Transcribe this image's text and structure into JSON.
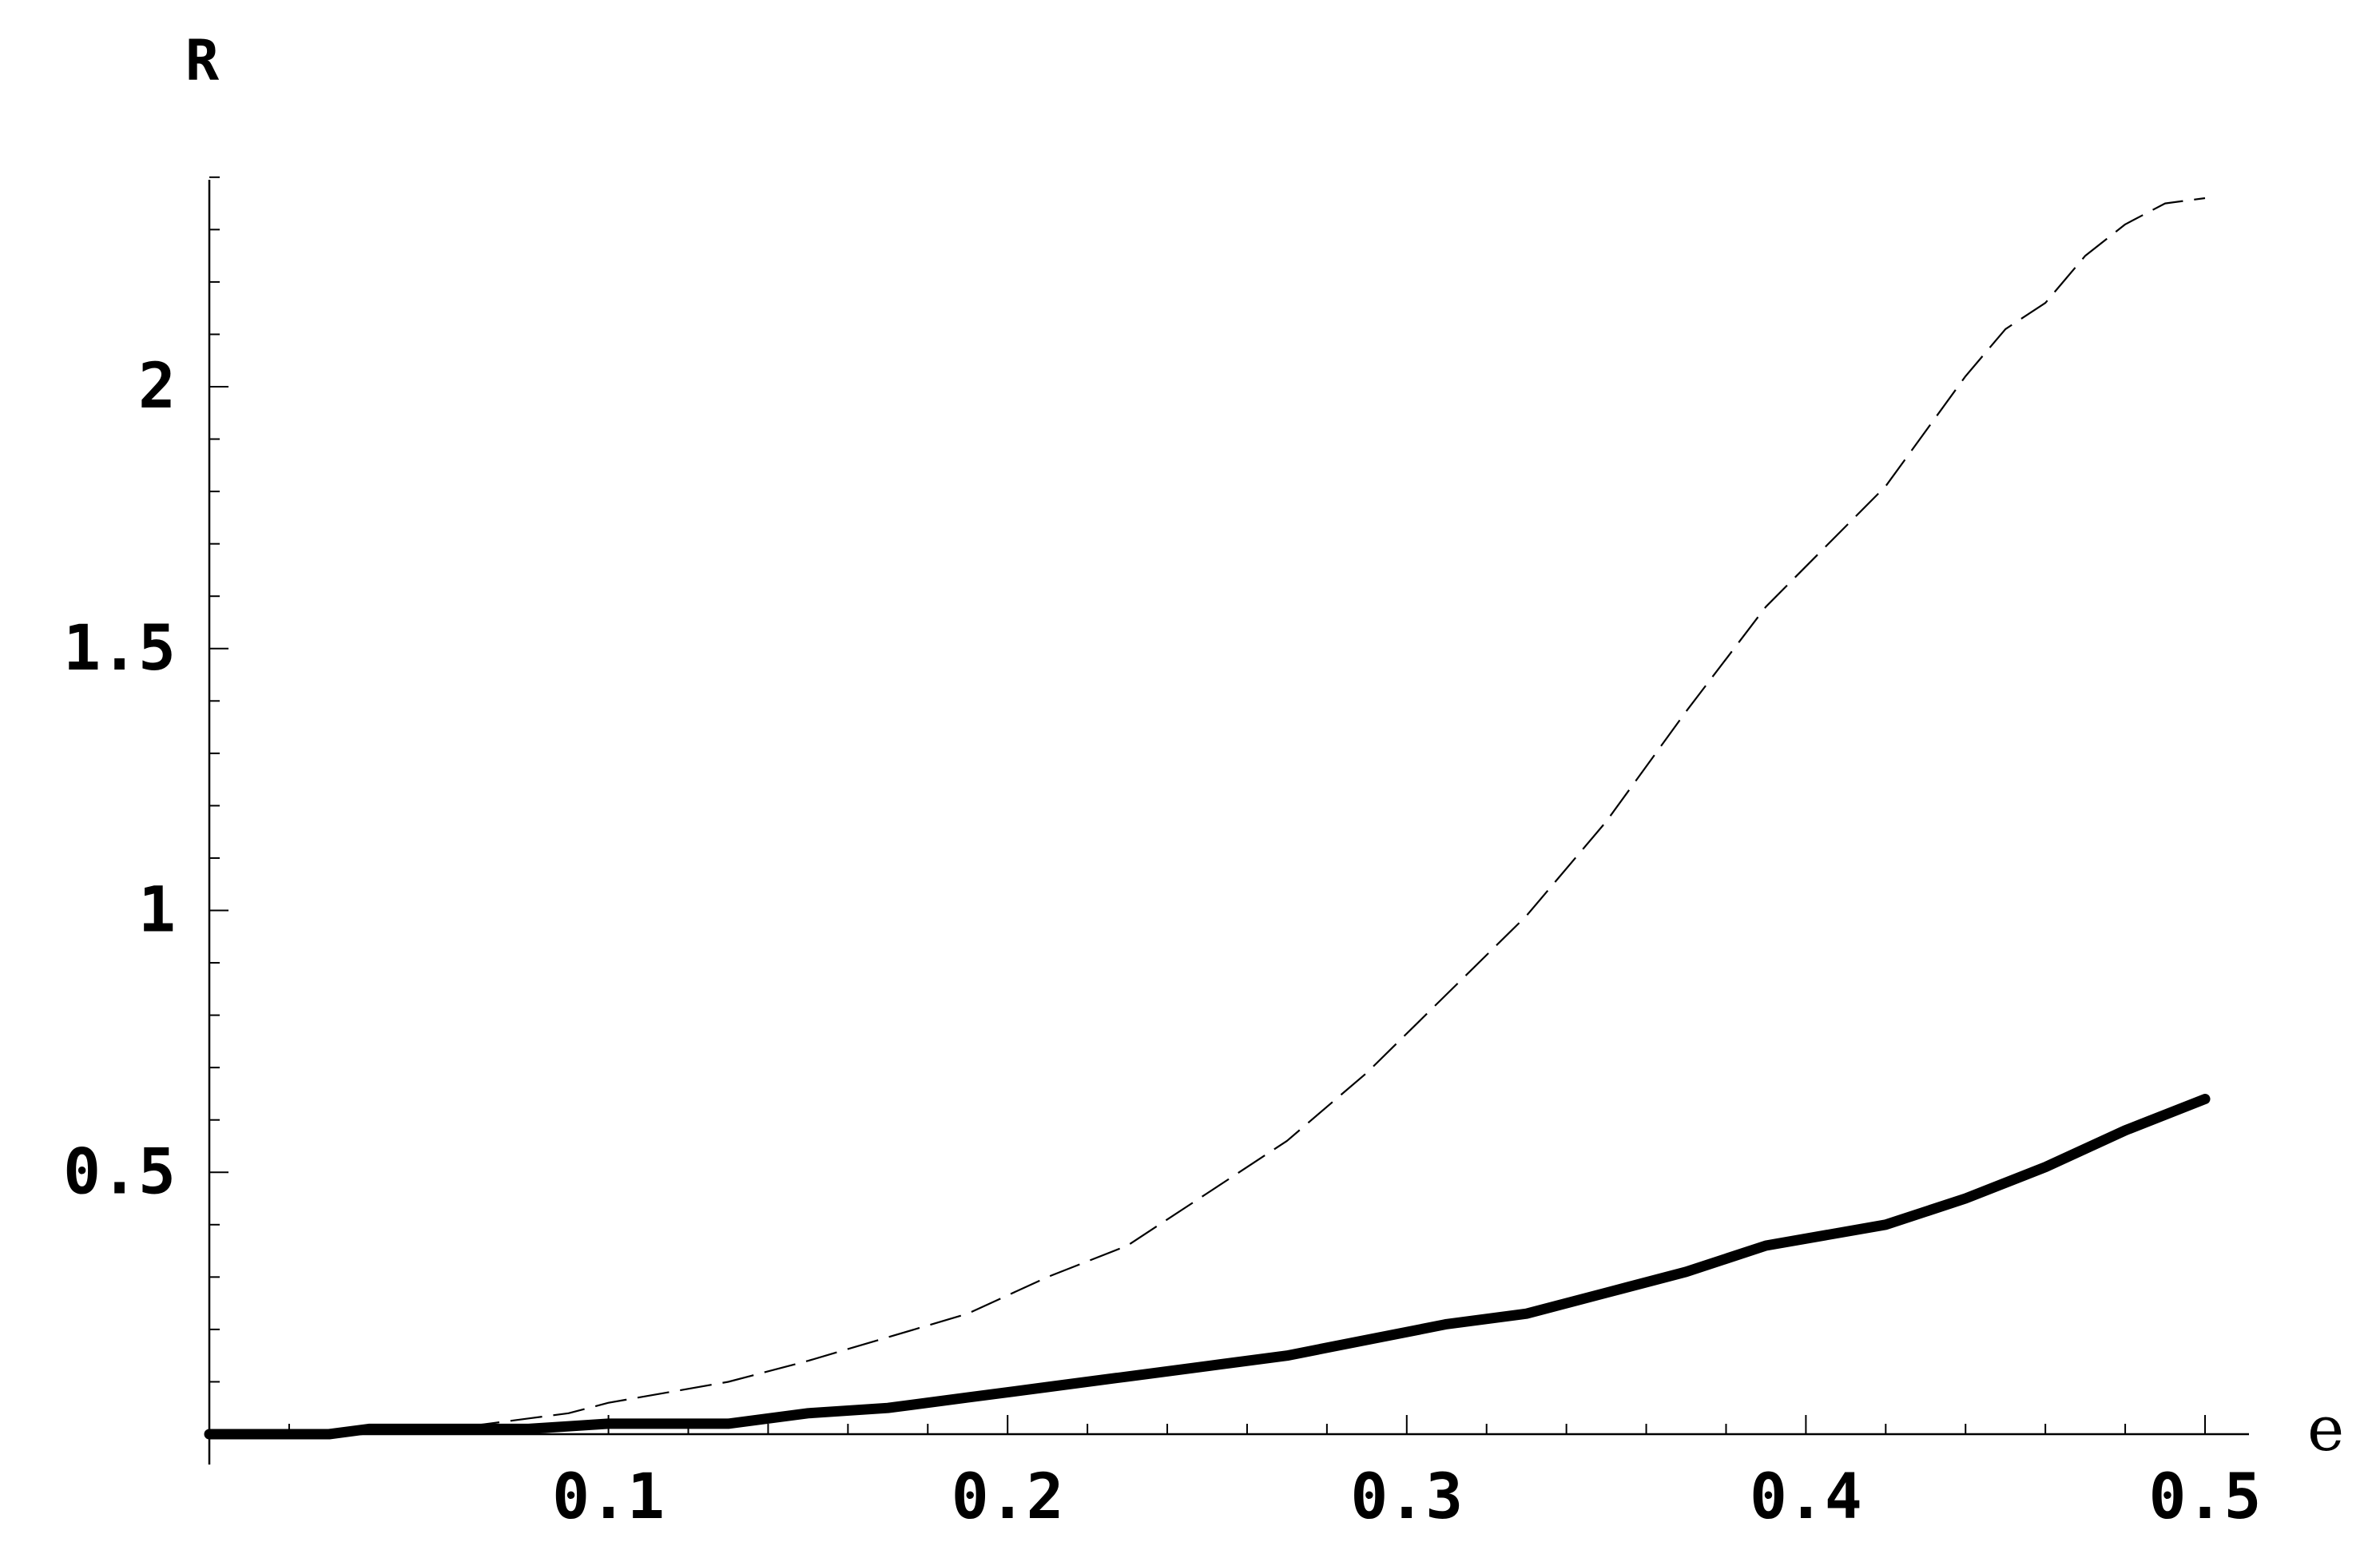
{
  "chart_data": {
    "type": "line",
    "xlabel": "e",
    "ylabel": "R",
    "xlim": [
      0,
      0.5
    ],
    "ylim": [
      0,
      2.4
    ],
    "grid": false,
    "x_ticks": [
      {
        "value": 0.1,
        "label": "0.1"
      },
      {
        "value": 0.2,
        "label": "0.2"
      },
      {
        "value": 0.3,
        "label": "0.3"
      },
      {
        "value": 0.4,
        "label": "0.4"
      },
      {
        "value": 0.5,
        "label": "0.5"
      }
    ],
    "y_ticks": [
      {
        "value": 0.5,
        "label": "0.5"
      },
      {
        "value": 1,
        "label": "1"
      },
      {
        "value": 1.5,
        "label": "1.5"
      },
      {
        "value": 2,
        "label": "2"
      }
    ],
    "series": [
      {
        "style": "dashed",
        "color": "#000000",
        "x": [
          0,
          0.03,
          0.04,
          0.06,
          0.08,
          0.09,
          0.1,
          0.13,
          0.15,
          0.19,
          0.21,
          0.23,
          0.25,
          0.27,
          0.29,
          0.31,
          0.33,
          0.35,
          0.37,
          0.39,
          0.42,
          0.44,
          0.45,
          0.46,
          0.47,
          0.48,
          0.49,
          0.5
        ],
        "y": [
          0,
          0,
          0.01,
          0.01,
          0.03,
          0.04,
          0.06,
          0.1,
          0.14,
          0.23,
          0.3,
          0.36,
          0.46,
          0.56,
          0.69,
          0.84,
          0.99,
          1.17,
          1.38,
          1.58,
          1.81,
          2.02,
          2.11,
          2.16,
          2.25,
          2.31,
          2.35,
          2.36
        ]
      },
      {
        "style": "solid",
        "color": "#000000",
        "x": [
          0,
          0.03,
          0.04,
          0.06,
          0.08,
          0.1,
          0.13,
          0.15,
          0.17,
          0.19,
          0.21,
          0.23,
          0.25,
          0.27,
          0.29,
          0.31,
          0.33,
          0.35,
          0.37,
          0.39,
          0.42,
          0.44,
          0.46,
          0.48,
          0.5
        ],
        "y": [
          0,
          0,
          0.01,
          0.01,
          0.01,
          0.02,
          0.02,
          0.04,
          0.05,
          0.07,
          0.09,
          0.11,
          0.13,
          0.15,
          0.18,
          0.21,
          0.23,
          0.27,
          0.31,
          0.36,
          0.4,
          0.45,
          0.51,
          0.58,
          0.64
        ]
      }
    ]
  }
}
